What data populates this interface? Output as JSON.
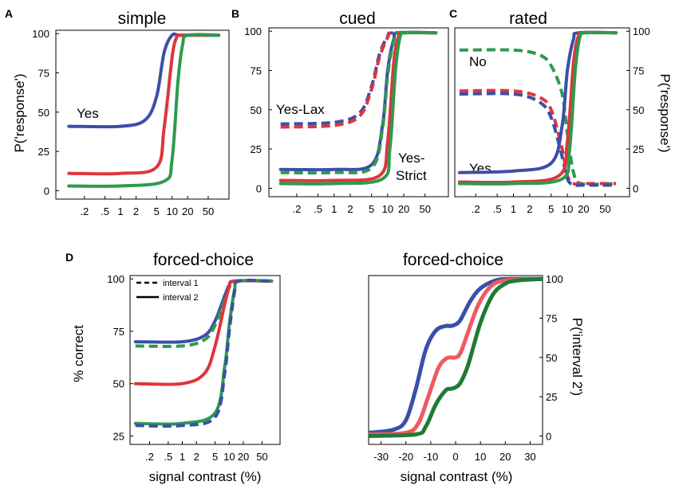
{
  "colors": {
    "blue": "#3a4fa8",
    "red": "#e0353b",
    "green": "#2e9a4e",
    "red_light": "#ef5a60",
    "green_dark": "#1f7a35"
  },
  "chart_data": [
    {
      "panel": "A",
      "title": "simple",
      "type": "line",
      "ylabel": "P('response')",
      "xlabel": "",
      "x_scale": "log",
      "xticks": [
        ".2",
        ".5",
        "1",
        "2",
        "5",
        "10",
        "20",
        "50"
      ],
      "yticks": [
        "0",
        "25",
        "50",
        "75",
        "100"
      ],
      "ylim": [
        0,
        100
      ],
      "annotations": [
        "Yes"
      ],
      "series": [
        {
          "color": "blue",
          "style": "solid",
          "x": [
            0.1,
            1,
            3,
            5,
            7,
            10,
            15,
            80
          ],
          "y": [
            41,
            41,
            45,
            60,
            88,
            99,
            99,
            99
          ]
        },
        {
          "color": "red",
          "style": "solid",
          "x": [
            0.1,
            1,
            5,
            7,
            10,
            12,
            15,
            80
          ],
          "y": [
            11,
            11,
            15,
            40,
            85,
            97,
            99,
            99
          ]
        },
        {
          "color": "green",
          "style": "solid",
          "x": [
            0.1,
            1,
            7,
            10,
            13,
            16,
            20,
            80
          ],
          "y": [
            3,
            3,
            6,
            20,
            70,
            93,
            99,
            99
          ]
        }
      ]
    },
    {
      "panel": "B",
      "title": "cued",
      "type": "line",
      "ylabel": "",
      "xlabel": "",
      "x_scale": "log",
      "xticks": [
        ".2",
        ".5",
        "1",
        "2",
        "5",
        "10",
        "20",
        "50"
      ],
      "yticks": [
        "0",
        "25",
        "50",
        "75",
        "100"
      ],
      "ylim": [
        0,
        100
      ],
      "annotations": [
        "Yes-Lax",
        "Yes-",
        "Strict"
      ],
      "series": [
        {
          "color": "blue",
          "style": "dashed",
          "x": [
            0.1,
            1,
            3,
            5,
            7,
            10,
            13,
            80
          ],
          "y": [
            41,
            42,
            48,
            65,
            85,
            97,
            99,
            99
          ]
        },
        {
          "color": "red",
          "style": "dashed",
          "x": [
            0.1,
            1,
            3,
            5,
            7,
            10,
            13,
            80
          ],
          "y": [
            39,
            40,
            46,
            63,
            83,
            96,
            99,
            99
          ]
        },
        {
          "color": "blue",
          "style": "solid",
          "x": [
            0.1,
            1,
            5,
            8,
            10,
            13,
            16,
            80
          ],
          "y": [
            12,
            12,
            15,
            40,
            75,
            95,
            99,
            99
          ]
        },
        {
          "color": "green",
          "style": "dashed",
          "x": [
            0.1,
            1,
            5,
            8,
            10,
            13,
            16,
            80
          ],
          "y": [
            10,
            10,
            13,
            38,
            72,
            94,
            99,
            99
          ]
        },
        {
          "color": "red",
          "style": "solid",
          "x": [
            0.1,
            1,
            7,
            10,
            13,
            16,
            20,
            80
          ],
          "y": [
            5,
            5,
            8,
            30,
            80,
            97,
            99,
            99
          ]
        },
        {
          "color": "green",
          "style": "solid",
          "x": [
            0.1,
            1,
            8,
            11,
            14,
            17,
            22,
            80
          ],
          "y": [
            3,
            3,
            6,
            25,
            75,
            96,
            99,
            99
          ]
        }
      ]
    },
    {
      "panel": "C",
      "title": "rated",
      "type": "line",
      "ylabel": "P('response')",
      "xlabel": "",
      "x_scale": "log",
      "xticks": [
        ".2",
        ".5",
        "1",
        "2",
        "5",
        "10",
        "20",
        "50"
      ],
      "yticks": [
        "0",
        "25",
        "50",
        "75",
        "100"
      ],
      "ylim": [
        0,
        100
      ],
      "annotations": [
        "No",
        "Yes"
      ],
      "series": [
        {
          "color": "green",
          "style": "dashed",
          "x": [
            0.1,
            1,
            3,
            5,
            8,
            10,
            13,
            18,
            80
          ],
          "y": [
            88,
            88,
            85,
            78,
            60,
            35,
            10,
            3,
            3
          ]
        },
        {
          "color": "red",
          "style": "dashed",
          "x": [
            0.1,
            1,
            3,
            5,
            8,
            10,
            13,
            18,
            80
          ],
          "y": [
            62,
            62,
            58,
            50,
            25,
            8,
            3,
            3,
            3
          ]
        },
        {
          "color": "blue",
          "style": "dashed",
          "x": [
            0.1,
            1,
            3,
            5,
            8,
            10,
            13,
            18,
            80
          ],
          "y": [
            60,
            60,
            55,
            45,
            20,
            6,
            2,
            2,
            2
          ]
        },
        {
          "color": "blue",
          "style": "solid",
          "x": [
            0.1,
            1,
            5,
            8,
            10,
            13,
            16,
            80
          ],
          "y": [
            10,
            11,
            16,
            40,
            75,
            95,
            99,
            99
          ]
        },
        {
          "color": "red",
          "style": "solid",
          "x": [
            0.1,
            1,
            7,
            10,
            13,
            16,
            20,
            80
          ],
          "y": [
            4,
            4,
            8,
            30,
            80,
            97,
            99,
            99
          ]
        },
        {
          "color": "green",
          "style": "solid",
          "x": [
            0.1,
            1,
            8,
            11,
            14,
            17,
            22,
            80
          ],
          "y": [
            3,
            3,
            6,
            25,
            75,
            96,
            99,
            99
          ]
        }
      ]
    },
    {
      "panel": "D",
      "title": "forced-choice",
      "type": "line",
      "ylabel": "% correct",
      "xlabel": "signal contrast (%)",
      "x_scale": "log",
      "xticks": [
        ".2",
        ".5",
        "1",
        "2",
        "5",
        "10",
        "20",
        "50"
      ],
      "yticks": [
        "25",
        "50",
        "75",
        "100"
      ],
      "ylim": [
        25,
        100
      ],
      "legend": [
        "interval 1",
        "interval 2"
      ],
      "legend_position": "top-left",
      "series": [
        {
          "color": "blue",
          "style": "solid",
          "x": [
            0.1,
            1,
            3,
            5,
            8,
            10,
            13,
            80
          ],
          "y": [
            70,
            70,
            73,
            80,
            92,
            97,
            99,
            99
          ]
        },
        {
          "color": "green",
          "style": "dashed",
          "x": [
            0.1,
            1,
            3,
            5,
            8,
            10,
            13,
            80
          ],
          "y": [
            68,
            68,
            71,
            78,
            90,
            96,
            99,
            99
          ]
        },
        {
          "color": "red",
          "style": "solid",
          "x": [
            0.1,
            1,
            3,
            5,
            8,
            10,
            13,
            80
          ],
          "y": [
            50,
            50,
            55,
            68,
            88,
            96,
            99,
            99
          ]
        },
        {
          "color": "green",
          "style": "solid",
          "x": [
            0.1,
            1,
            5,
            8,
            10,
            13,
            16,
            80
          ],
          "y": [
            31,
            31,
            36,
            58,
            78,
            95,
            99,
            99
          ]
        },
        {
          "color": "blue",
          "style": "dashed",
          "x": [
            0.1,
            1,
            5,
            8,
            10,
            13,
            16,
            80
          ],
          "y": [
            30,
            30,
            34,
            55,
            75,
            94,
            99,
            99
          ]
        }
      ]
    },
    {
      "panel": "",
      "title": "forced-choice",
      "type": "line",
      "ylabel": "P('interval 2')",
      "xlabel": "signal contrast (%)",
      "x_scale": "linear",
      "xticks": [
        "-30",
        "-20",
        "-10",
        "0",
        "10",
        "20",
        "30"
      ],
      "yticks": [
        "0",
        "25",
        "50",
        "75",
        "100"
      ],
      "ylim": [
        0,
        100
      ],
      "xlim": [
        -35,
        35
      ],
      "series": [
        {
          "color": "blue",
          "style": "solid",
          "x": [
            -35,
            -25,
            -20,
            -16,
            -12,
            -8,
            -4,
            -2,
            0,
            2,
            6,
            10,
            16,
            22,
            35
          ],
          "y": [
            2,
            4,
            10,
            30,
            55,
            67,
            70,
            70,
            71,
            74,
            86,
            94,
            99,
            100,
            100
          ]
        },
        {
          "color": "red_light",
          "style": "solid",
          "x": [
            -35,
            -20,
            -15,
            -11,
            -7,
            -4,
            -2,
            0,
            2,
            5,
            9,
            14,
            20,
            35
          ],
          "y": [
            1,
            2,
            8,
            25,
            43,
            49,
            50,
            50,
            53,
            66,
            83,
            95,
            99,
            100
          ]
        },
        {
          "color": "green_dark",
          "style": "solid",
          "x": [
            -35,
            -16,
            -12,
            -8,
            -4,
            -2,
            0,
            2,
            5,
            10,
            15,
            20,
            25,
            35
          ],
          "y": [
            0,
            1,
            6,
            20,
            29,
            30,
            31,
            34,
            45,
            72,
            90,
            97,
            99,
            100
          ]
        }
      ]
    }
  ]
}
